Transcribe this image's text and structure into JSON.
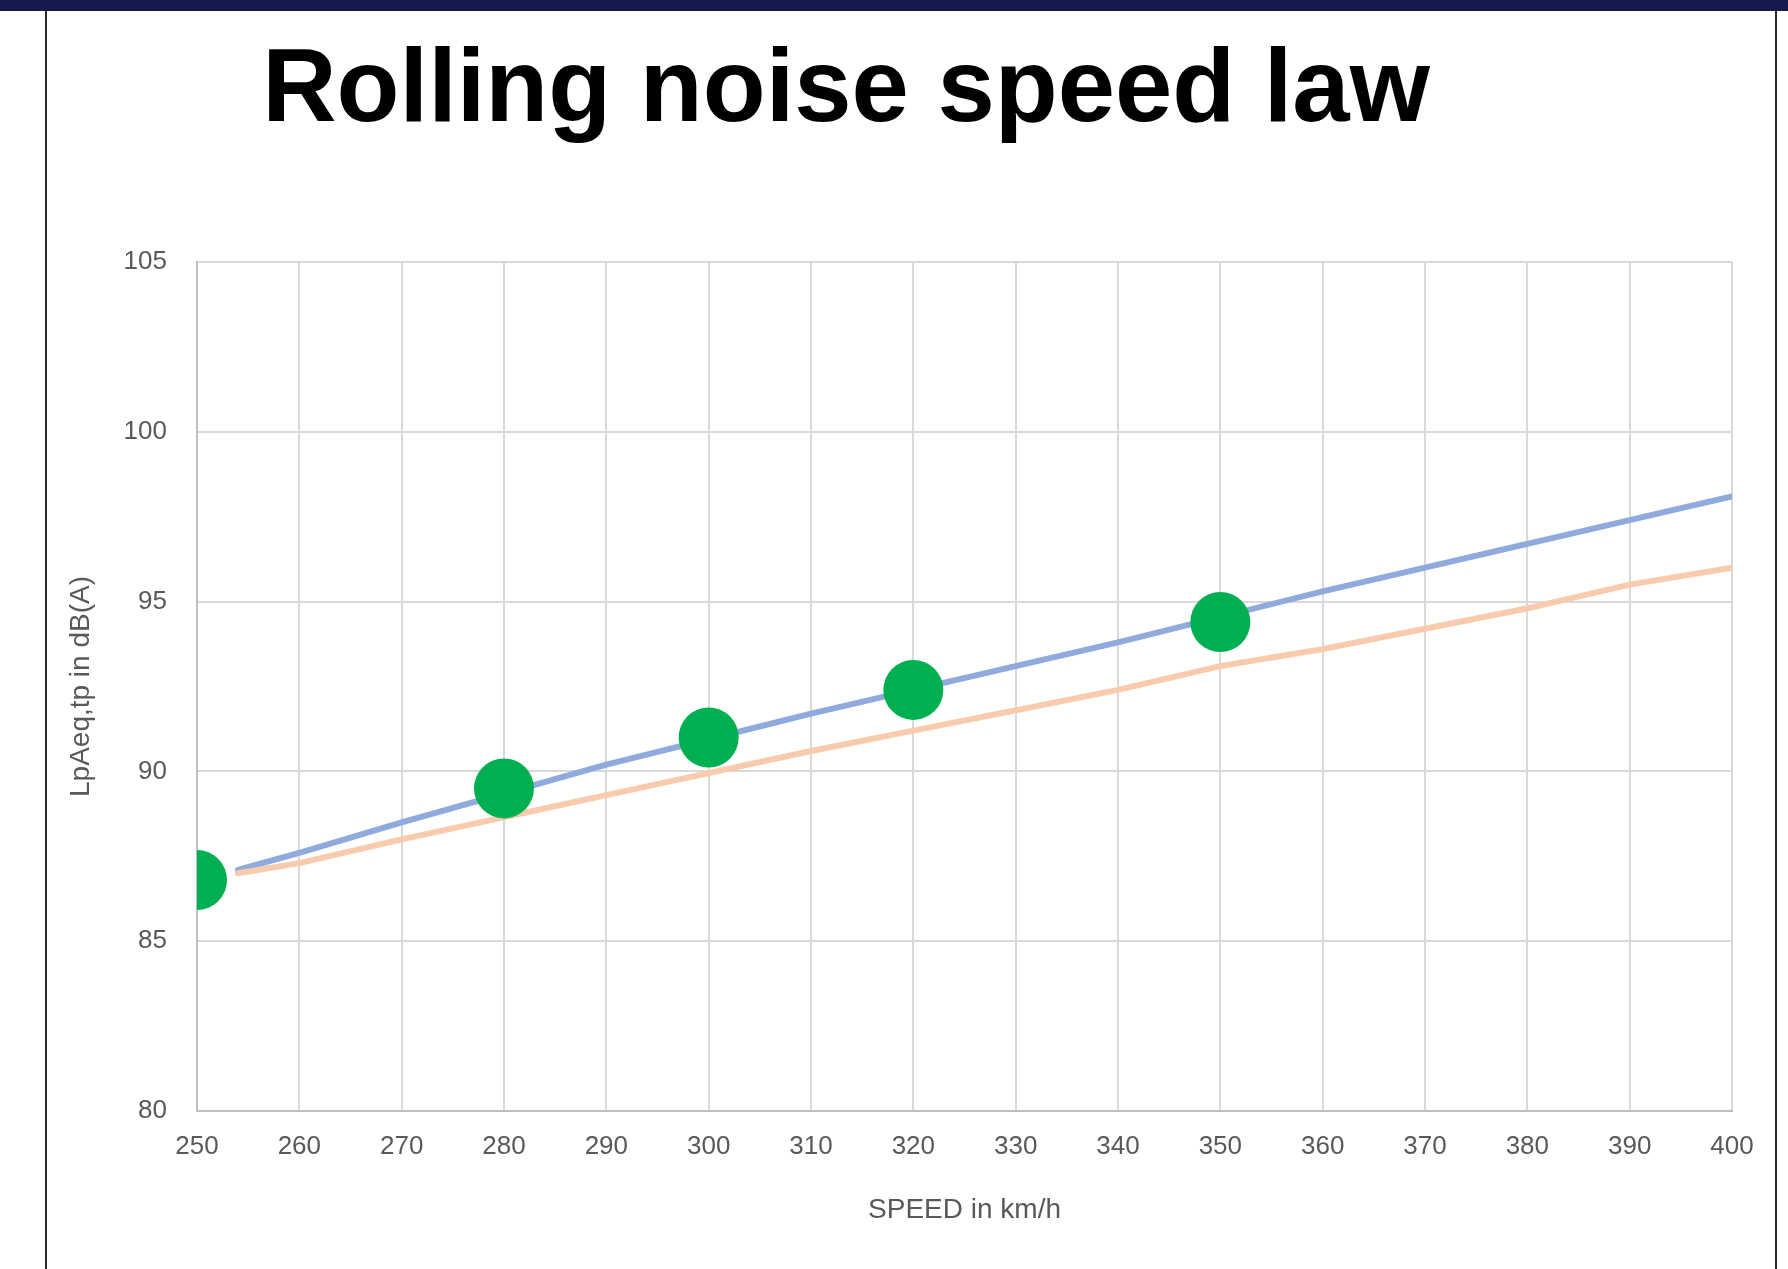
{
  "chart_data": {
    "type": "line",
    "title": "Rolling noise speed law",
    "xlabel": "SPEED in km/h",
    "ylabel": "LpAeq,tp in dB(A)",
    "series": [
      {
        "color": "#8faadc",
        "x": [
          254,
          260,
          270,
          290,
          310,
          330,
          340,
          360,
          370,
          380,
          390,
          400
        ],
        "values": [
          87.1,
          87.6,
          88.5,
          90.2,
          91.7,
          93.1,
          93.8,
          95.3,
          96.0,
          96.7,
          97.4,
          98.1
        ]
      },
      {
        "color": "#f8cbad",
        "x": [
          254,
          260,
          270,
          290,
          310,
          320,
          330,
          340,
          350,
          360,
          370,
          380,
          390,
          400
        ],
        "values": [
          87.0,
          87.3,
          88.0,
          89.3,
          90.6,
          91.2,
          91.8,
          92.4,
          93.1,
          93.6,
          94.2,
          94.8,
          95.5,
          96.0
        ]
      },
      {
        "type": "scatter",
        "color": "#00b050",
        "marker": "circle",
        "x": [
          250,
          280,
          300,
          320,
          350
        ],
        "values": [
          86.8,
          89.5,
          91.0,
          92.4,
          94.4
        ]
      }
    ],
    "xlim": [
      250,
      400
    ],
    "xticks": [
      250,
      260,
      270,
      280,
      290,
      300,
      310,
      320,
      330,
      340,
      350,
      360,
      370,
      380,
      390,
      400
    ],
    "ylim": [
      80,
      105
    ],
    "yticks": [
      80,
      85,
      90,
      95,
      100,
      105
    ],
    "grid": true
  }
}
